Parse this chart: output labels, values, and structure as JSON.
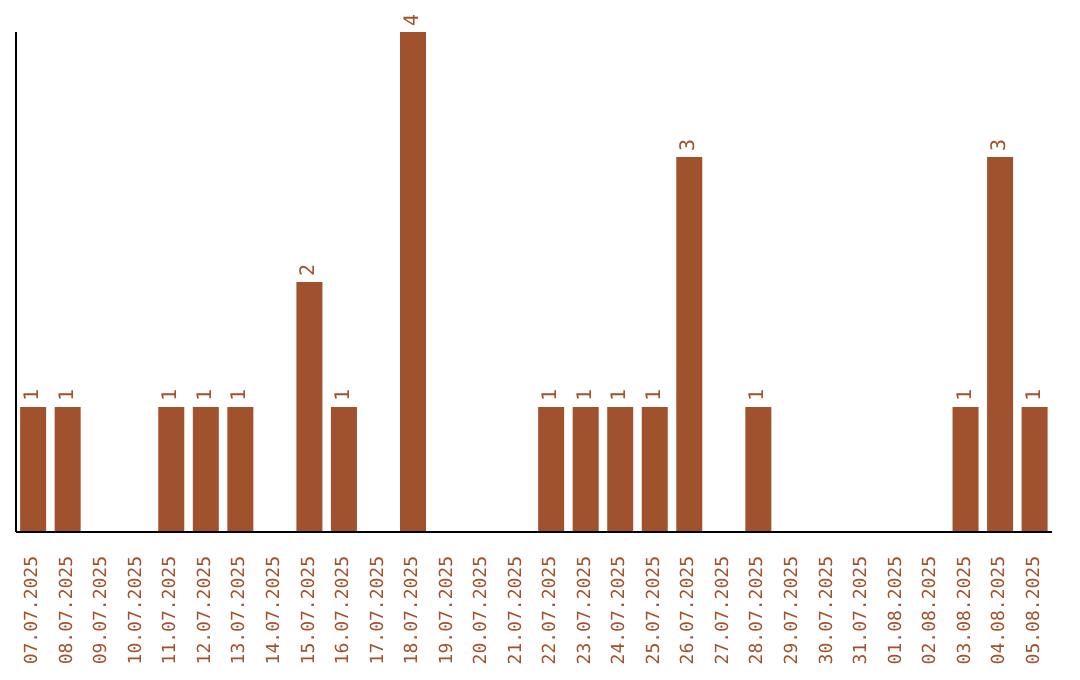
{
  "chart_data": {
    "type": "bar",
    "categories": [
      "07.07.2025",
      "08.07.2025",
      "09.07.2025",
      "10.07.2025",
      "11.07.2025",
      "12.07.2025",
      "13.07.2025",
      "14.07.2025",
      "15.07.2025",
      "16.07.2025",
      "17.07.2025",
      "18.07.2025",
      "19.07.2025",
      "20.07.2025",
      "21.07.2025",
      "22.07.2025",
      "23.07.2025",
      "24.07.2025",
      "25.07.2025",
      "26.07.2025",
      "27.07.2025",
      "28.07.2025",
      "29.07.2025",
      "30.07.2025",
      "31.07.2025",
      "01.08.2025",
      "02.08.2025",
      "03.08.2025",
      "04.08.2025",
      "05.08.2025"
    ],
    "values": [
      1,
      1,
      0,
      0,
      1,
      1,
      1,
      0,
      2,
      1,
      0,
      4,
      0,
      0,
      0,
      1,
      1,
      1,
      1,
      3,
      0,
      1,
      0,
      0,
      0,
      0,
      0,
      1,
      3,
      1
    ],
    "value_labels": [
      "1",
      "1",
      null,
      null,
      "1",
      "1",
      "1",
      null,
      "2",
      "1",
      null,
      "4",
      null,
      null,
      null,
      "1",
      "1",
      "1",
      "1",
      "3",
      null,
      "1",
      null,
      null,
      null,
      null,
      null,
      "1",
      "3",
      "1"
    ],
    "color": "#a0522d"
  }
}
